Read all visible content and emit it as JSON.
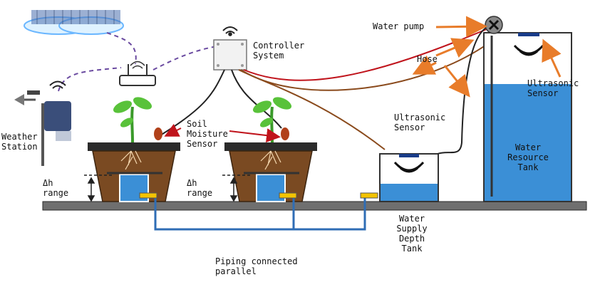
{
  "labels": {
    "weather_station": "Weather\nStation",
    "controller_system": "Controller\nSystem",
    "soil_moisture_sensor": "Soil\nMoisture\nSensor",
    "delta_h_range_left": "Δh\nrange",
    "delta_h_range_mid": "Δh\nrange",
    "water_pump": "Water pump",
    "hose": "Hose",
    "ultrasonic_sensor_small": "Ultrasonic\nSensor",
    "ultrasonic_sensor_large": "Ultrasonic\nSensor",
    "water_resource_tank": "Water\nResource\nTank",
    "water_supply_depth_tank": "Water\nSupply\nDepth\nTank",
    "piping_connected_parallel": "Piping connected\nparallel"
  },
  "colors": {
    "pot": "#7a4a22",
    "pot_rim": "#2b2b2b",
    "water": "#3b8fd6",
    "pipe": "#2f6db5",
    "ground": "#6f6f6f",
    "arrow_orange": "#e87c2a",
    "arrow_red": "#c0141c",
    "wire_red": "#c0141c",
    "wire_brown": "#8a4a1c",
    "wire_black": "#222222",
    "dashed_link": "#6a4aa0",
    "sensor_bar": "#1a3d8a",
    "valve_yellow": "#f3c300"
  },
  "icons": [
    "cloud-icon",
    "router-icon",
    "controller-box-icon",
    "weather-station-icon",
    "plant-icon",
    "moisture-probe-icon",
    "pump-icon",
    "ultrasonic-wave-icon",
    "wifi-icon"
  ]
}
